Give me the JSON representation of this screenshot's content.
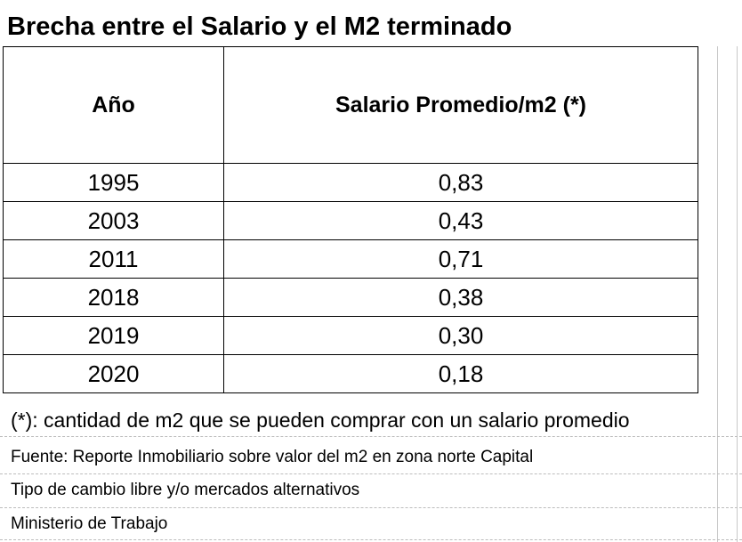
{
  "title": "Brecha entre el Salario y el M2 terminado",
  "table": {
    "headers": [
      "Año",
      "Salario Promedio/m2 (*)"
    ],
    "rows": [
      [
        "1995",
        "0,83"
      ],
      [
        "2003",
        "0,43"
      ],
      [
        "2011",
        "0,71"
      ],
      [
        "2018",
        "0,38"
      ],
      [
        "2019",
        "0,30"
      ],
      [
        "2020",
        "0,18"
      ]
    ]
  },
  "note": "(*): cantidad de m2 que se pueden comprar con un salario promedio",
  "sources": {
    "line1": "Fuente: Reporte Inmobiliario sobre valor del m2 en zona norte Capital",
    "line2": "Tipo de cambio libre y/o mercados alternativos",
    "line3": "Ministerio de Trabajo"
  }
}
